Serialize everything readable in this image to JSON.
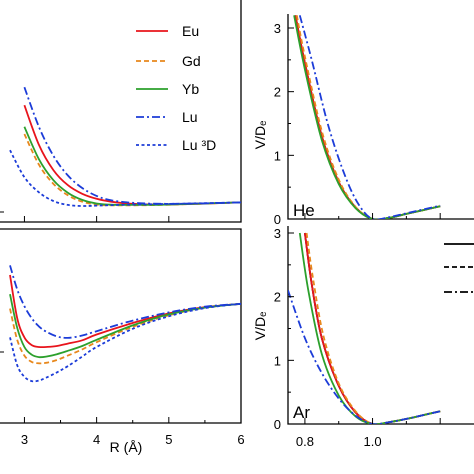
{
  "chart_data": [
    {
      "type": "line",
      "panel": "top-left",
      "xlim": [
        2.8,
        6.0
      ],
      "legend_position": "top-right",
      "series": [
        {
          "name": "Eu",
          "color": "#e8141c",
          "dash": "solid",
          "points": [
            [
              3.0,
              2.8
            ],
            [
              3.2,
              1.7
            ],
            [
              3.4,
              1.0
            ],
            [
              3.6,
              0.58
            ],
            [
              3.8,
              0.34
            ],
            [
              4.0,
              0.2
            ],
            [
              4.2,
              0.12
            ],
            [
              4.5,
              0.06
            ],
            [
              4.9,
              0.04
            ],
            [
              5.4,
              0.06
            ],
            [
              6.0,
              0.1
            ]
          ]
        },
        {
          "name": "Gd",
          "color": "#e8881c",
          "dash": "dashed",
          "points": [
            [
              3.0,
              2.0
            ],
            [
              3.2,
              1.15
            ],
            [
              3.4,
              0.62
            ],
            [
              3.6,
              0.3
            ],
            [
              3.8,
              0.12
            ],
            [
              4.0,
              0.04
            ],
            [
              4.2,
              0.02
            ],
            [
              4.5,
              0.02
            ],
            [
              4.9,
              0.03
            ],
            [
              5.4,
              0.06
            ],
            [
              6.0,
              0.1
            ]
          ]
        },
        {
          "name": "Yb",
          "color": "#2ca02c",
          "dash": "solid",
          "points": [
            [
              3.0,
              2.2
            ],
            [
              3.2,
              1.3
            ],
            [
              3.4,
              0.72
            ],
            [
              3.6,
              0.37
            ],
            [
              3.8,
              0.17
            ],
            [
              4.0,
              0.07
            ],
            [
              4.2,
              0.035
            ],
            [
              4.5,
              0.03
            ],
            [
              4.9,
              0.035
            ],
            [
              5.4,
              0.065
            ],
            [
              6.0,
              0.1
            ]
          ]
        },
        {
          "name": "Lu",
          "color": "#1c3cd8",
          "dash": "dashdot",
          "points": [
            [
              3.0,
              3.3
            ],
            [
              3.2,
              2.2
            ],
            [
              3.4,
              1.4
            ],
            [
              3.6,
              0.85
            ],
            [
              3.8,
              0.5
            ],
            [
              4.0,
              0.28
            ],
            [
              4.2,
              0.16
            ],
            [
              4.5,
              0.09
            ],
            [
              4.9,
              0.06
            ],
            [
              5.4,
              0.07
            ],
            [
              6.0,
              0.1
            ]
          ]
        },
        {
          "name": "Lu ³D",
          "color": "#1c3cd8",
          "dash": "dotted",
          "points": [
            [
              2.8,
              1.55
            ],
            [
              3.0,
              0.8
            ],
            [
              3.2,
              0.38
            ],
            [
              3.4,
              0.14
            ],
            [
              3.6,
              0.03
            ],
            [
              3.8,
              0.0
            ],
            [
              4.0,
              0.01
            ],
            [
              4.3,
              0.03
            ],
            [
              4.8,
              0.05
            ],
            [
              5.4,
              0.075
            ],
            [
              6.0,
              0.1
            ]
          ]
        }
      ]
    },
    {
      "type": "line",
      "panel": "bottom-left",
      "xlabel": "R (Å)",
      "xlim": [
        2.8,
        6.0
      ],
      "x_ticks": [
        "3",
        "4",
        "5",
        "6"
      ],
      "series": [
        {
          "name": "Eu",
          "color": "#e8141c",
          "dash": "solid",
          "points": [
            [
              2.8,
              1.5
            ],
            [
              2.9,
              0.6
            ],
            [
              3.0,
              0.2
            ],
            [
              3.1,
              0.04
            ],
            [
              3.2,
              0.0
            ],
            [
              3.3,
              0.0
            ],
            [
              3.45,
              0.02
            ],
            [
              3.6,
              0.07
            ],
            [
              3.8,
              0.14
            ],
            [
              4.0,
              0.26
            ],
            [
              4.5,
              0.5
            ],
            [
              5.0,
              0.7
            ],
            [
              5.5,
              0.83
            ],
            [
              6.0,
              0.9
            ]
          ]
        },
        {
          "name": "Gd",
          "color": "#e8881c",
          "dash": "dashed",
          "points": [
            [
              2.8,
              0.8
            ],
            [
              2.9,
              0.15
            ],
            [
              3.0,
              -0.18
            ],
            [
              3.1,
              -0.31
            ],
            [
              3.2,
              -0.34
            ],
            [
              3.3,
              -0.33
            ],
            [
              3.45,
              -0.27
            ],
            [
              3.6,
              -0.18
            ],
            [
              3.8,
              -0.05
            ],
            [
              4.0,
              0.1
            ],
            [
              4.5,
              0.42
            ],
            [
              5.0,
              0.66
            ],
            [
              5.5,
              0.82
            ],
            [
              6.0,
              0.9
            ]
          ]
        },
        {
          "name": "Yb",
          "color": "#2ca02c",
          "dash": "solid",
          "points": [
            [
              2.8,
              1.1
            ],
            [
              2.9,
              0.4
            ],
            [
              3.0,
              0.0
            ],
            [
              3.1,
              -0.16
            ],
            [
              3.2,
              -0.21
            ],
            [
              3.3,
              -0.2
            ],
            [
              3.45,
              -0.15
            ],
            [
              3.6,
              -0.08
            ],
            [
              3.8,
              0.02
            ],
            [
              4.0,
              0.15
            ],
            [
              4.5,
              0.45
            ],
            [
              5.0,
              0.68
            ],
            [
              5.5,
              0.82
            ],
            [
              6.0,
              0.9
            ]
          ]
        },
        {
          "name": "Lu",
          "color": "#1c3cd8",
          "dash": "dashdot",
          "points": [
            [
              2.8,
              1.7
            ],
            [
              2.9,
              1.2
            ],
            [
              3.0,
              0.85
            ],
            [
              3.1,
              0.6
            ],
            [
              3.2,
              0.43
            ],
            [
              3.3,
              0.32
            ],
            [
              3.45,
              0.22
            ],
            [
              3.6,
              0.19
            ],
            [
              3.8,
              0.24
            ],
            [
              4.0,
              0.33
            ],
            [
              4.5,
              0.55
            ],
            [
              5.0,
              0.72
            ],
            [
              5.5,
              0.84
            ],
            [
              6.0,
              0.9
            ]
          ]
        },
        {
          "name": "Lu ³D",
          "color": "#1c3cd8",
          "dash": "dotted",
          "points": [
            [
              2.8,
              0.2
            ],
            [
              2.9,
              -0.38
            ],
            [
              3.0,
              -0.62
            ],
            [
              3.1,
              -0.71
            ],
            [
              3.2,
              -0.7
            ],
            [
              3.3,
              -0.64
            ],
            [
              3.45,
              -0.53
            ],
            [
              3.6,
              -0.4
            ],
            [
              3.8,
              -0.2
            ],
            [
              4.0,
              0.0
            ],
            [
              4.5,
              0.38
            ],
            [
              5.0,
              0.64
            ],
            [
              5.5,
              0.81
            ],
            [
              6.0,
              0.9
            ]
          ]
        }
      ]
    },
    {
      "type": "line",
      "panel": "top-right",
      "ylabel": "V/Dₑ",
      "xlim": [
        0.75,
        1.3
      ],
      "ylim": [
        0,
        3
      ],
      "y_ticks": [
        "0",
        "1",
        "2",
        "3"
      ],
      "annotation": "He",
      "series": [
        {
          "color": "#000000",
          "dash": "solid",
          "points": [
            [
              0.772,
              3.2
            ],
            [
              0.8,
              2.45
            ],
            [
              0.85,
              1.3
            ],
            [
              0.9,
              0.58
            ],
            [
              0.95,
              0.18
            ],
            [
              1.0,
              0.0
            ],
            [
              1.05,
              0.02
            ],
            [
              1.1,
              0.08
            ],
            [
              1.15,
              0.14
            ],
            [
              1.2,
              0.2
            ]
          ]
        },
        {
          "color": "#e8141c",
          "dash": "solid",
          "points": [
            [
              0.772,
              3.2
            ],
            [
              0.8,
              2.45
            ],
            [
              0.85,
              1.3
            ],
            [
              0.9,
              0.58
            ],
            [
              0.95,
              0.18
            ],
            [
              1.0,
              0.0
            ],
            [
              1.05,
              0.02
            ],
            [
              1.1,
              0.08
            ],
            [
              1.15,
              0.14
            ],
            [
              1.2,
              0.2
            ]
          ]
        },
        {
          "color": "#e8881c",
          "dash": "dashed",
          "points": [
            [
              0.776,
              3.2
            ],
            [
              0.8,
              2.55
            ],
            [
              0.85,
              1.38
            ],
            [
              0.9,
              0.62
            ],
            [
              0.95,
              0.19
            ],
            [
              1.0,
              0.0
            ],
            [
              1.05,
              0.02
            ],
            [
              1.1,
              0.08
            ],
            [
              1.15,
              0.14
            ],
            [
              1.2,
              0.2
            ]
          ]
        },
        {
          "color": "#2ca02c",
          "dash": "solid",
          "points": [
            [
              0.768,
              3.2
            ],
            [
              0.8,
              2.35
            ],
            [
              0.85,
              1.24
            ],
            [
              0.9,
              0.55
            ],
            [
              0.95,
              0.17
            ],
            [
              1.0,
              0.0
            ],
            [
              1.05,
              0.02
            ],
            [
              1.1,
              0.08
            ],
            [
              1.15,
              0.14
            ],
            [
              1.2,
              0.2
            ]
          ]
        },
        {
          "color": "#1c3cd8",
          "dash": "dashdot",
          "points": [
            [
              0.785,
              3.2
            ],
            [
              0.82,
              2.5
            ],
            [
              0.87,
              1.45
            ],
            [
              0.92,
              0.66
            ],
            [
              0.96,
              0.22
            ],
            [
              1.0,
              0.0
            ],
            [
              1.05,
              0.03
            ],
            [
              1.1,
              0.09
            ],
            [
              1.15,
              0.15
            ],
            [
              1.2,
              0.21
            ]
          ]
        }
      ]
    },
    {
      "type": "line",
      "panel": "bottom-right",
      "ylabel": "V/Dₑ",
      "xlim": [
        0.75,
        1.3
      ],
      "ylim": [
        0,
        3
      ],
      "y_ticks": [
        "0",
        "1",
        "2",
        "3"
      ],
      "x_ticks": [
        "0.8",
        "1.0"
      ],
      "annotation": "Ar",
      "series": [
        {
          "color": "#000000",
          "dash": "solid",
          "points": [
            [
              0.8,
              3.0
            ],
            [
              0.82,
              2.2
            ],
            [
              0.85,
              1.35
            ],
            [
              0.9,
              0.6
            ],
            [
              0.95,
              0.18
            ],
            [
              1.0,
              0.0
            ],
            [
              1.05,
              0.03
            ],
            [
              1.1,
              0.08
            ],
            [
              1.15,
              0.14
            ],
            [
              1.2,
              0.2
            ]
          ]
        },
        {
          "color": "#e8141c",
          "dash": "solid",
          "points": [
            [
              0.8,
              3.0
            ],
            [
              0.82,
              2.2
            ],
            [
              0.85,
              1.35
            ],
            [
              0.9,
              0.6
            ],
            [
              0.95,
              0.18
            ],
            [
              1.0,
              0.0
            ],
            [
              1.05,
              0.03
            ],
            [
              1.1,
              0.08
            ],
            [
              1.15,
              0.14
            ],
            [
              1.2,
              0.2
            ]
          ]
        },
        {
          "color": "#e8881c",
          "dash": "dashed",
          "points": [
            [
              0.805,
              3.0
            ],
            [
              0.825,
              2.25
            ],
            [
              0.855,
              1.38
            ],
            [
              0.9,
              0.64
            ],
            [
              0.95,
              0.2
            ],
            [
              1.0,
              0.0
            ],
            [
              1.05,
              0.03
            ],
            [
              1.1,
              0.08
            ],
            [
              1.15,
              0.14
            ],
            [
              1.2,
              0.2
            ]
          ]
        },
        {
          "color": "#2ca02c",
          "dash": "solid",
          "points": [
            [
              0.785,
              3.0
            ],
            [
              0.81,
              2.1
            ],
            [
              0.85,
              1.1
            ],
            [
              0.9,
              0.45
            ],
            [
              0.95,
              0.12
            ],
            [
              1.0,
              0.0
            ],
            [
              1.05,
              0.03
            ],
            [
              1.1,
              0.08
            ],
            [
              1.15,
              0.14
            ],
            [
              1.2,
              0.2
            ]
          ]
        },
        {
          "color": "#1c3cd8",
          "dash": "dashdot",
          "points": [
            [
              0.75,
              2.1
            ],
            [
              0.8,
              1.35
            ],
            [
              0.85,
              0.8
            ],
            [
              0.9,
              0.4
            ],
            [
              0.95,
              0.13
            ],
            [
              1.0,
              0.0
            ],
            [
              1.05,
              0.03
            ],
            [
              1.1,
              0.08
            ],
            [
              1.15,
              0.14
            ],
            [
              1.2,
              0.2
            ]
          ]
        }
      ],
      "legend_samples": [
        {
          "dash": "solid"
        },
        {
          "dash": "dashed"
        },
        {
          "dash": "dashdot"
        }
      ]
    }
  ]
}
